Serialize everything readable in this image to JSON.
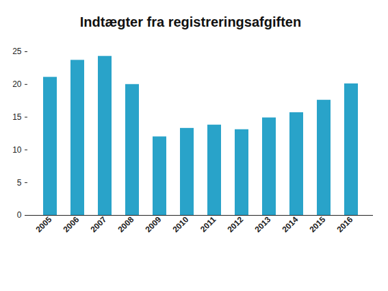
{
  "chart_data": {
    "type": "bar",
    "title": "Indtægter fra registreringsafgiften",
    "categories": [
      "2005",
      "2006",
      "2007",
      "2008",
      "2009",
      "2010",
      "2011",
      "2012",
      "2013",
      "2014",
      "2015",
      "2016"
    ],
    "values": [
      21.1,
      23.7,
      24.3,
      20.0,
      12.0,
      13.3,
      13.8,
      13.1,
      14.9,
      15.7,
      17.6,
      20.1
    ],
    "color": "#29a3c9",
    "ylim": [
      0,
      25
    ],
    "yticks": [
      0,
      5,
      10,
      15,
      20,
      25
    ],
    "grid": false
  }
}
